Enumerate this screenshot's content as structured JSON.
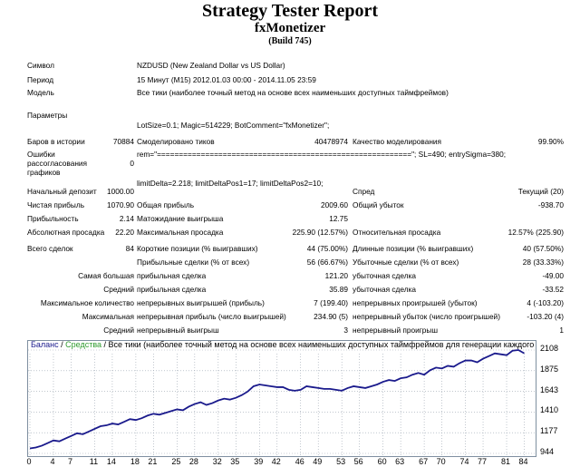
{
  "report": {
    "title": "Strategy Tester Report",
    "expert": "fxMonetizer",
    "build": "(Build 745)"
  },
  "info": {
    "symbol_label": "Символ",
    "symbol_value": "NZDUSD (New Zealand Dollar vs US Dollar)",
    "period_label": "Период",
    "period_value": "15 Минут (M15) 2012.01.03 00:00 - 2014.11.05 23:59",
    "model_label": "Модель",
    "model_value": "Все тики (наиболее точный метод на основе всех наименьших доступных таймфреймов)",
    "params_label": "Параметры",
    "params_lines": [
      "LotSize=0.1; Magic=514229; BotComment=\"fxMonetizer\";",
      "rem=\"==========================================================\"; SL=490; entrySigma=380;",
      "limitDelta=2.218; limitDeltaPos1=17; limitDeltaPos2=10;"
    ],
    "bars_label": "Баров в истории",
    "bars_value": "70884",
    "ticks_label": "Смоделировано тиков",
    "ticks_value": "40478974",
    "quality_label": "Качество моделирования",
    "quality_value": "99.90%",
    "errors_label_1": "Ошибки",
    "errors_label_2": "рассогласования",
    "errors_label_3": "графиков",
    "errors_value": "0"
  },
  "stats": {
    "deposit_label": "Начальный депозит",
    "deposit_value": "1000.00",
    "spread_label": "Спред",
    "spread_value": "Текущий (20)",
    "net_label": "Чистая прибыль",
    "net_value": "1070.90",
    "gross_profit_label": "Общая прибыль",
    "gross_profit_value": "2009.60",
    "gross_loss_label": "Общий убыток",
    "gross_loss_value": "-938.70",
    "pf_label": "Прибыльность",
    "pf_value": "2.14",
    "expected_label": "Матожидание выигрыша",
    "expected_value": "12.75",
    "abs_dd_label": "Абсолютная просадка",
    "abs_dd_value": "22.20",
    "max_dd_label": "Максимальная просадка",
    "max_dd_value": "225.90 (12.57%)",
    "rel_dd_label": "Относительная просадка",
    "rel_dd_value": "12.57% (225.90)",
    "trades_label": "Всего сделок",
    "trades_value": "84",
    "short_label": "Короткие позиции (% выигравших)",
    "short_value": "44 (75.00%)",
    "long_label": "Длинные позиции (% выигравших)",
    "long_value": "40 (57.50%)",
    "profit_trades_label": "Прибыльные сделки (% от всех)",
    "profit_trades_value": "56 (66.67%)",
    "loss_trades_label": "Убыточные сделки (% от всех)",
    "loss_trades_value": "28 (33.33%)",
    "largest_label": "Самая большая",
    "largest_profit_label": "прибыльная сделка",
    "largest_profit_value": "121.20",
    "largest_loss_label": "убыточная сделка",
    "largest_loss_value": "-49.00",
    "average_label": "Средний",
    "average_profit_label": "прибыльная сделка",
    "average_profit_value": "35.89",
    "average_loss_label": "убыточная сделка",
    "average_loss_value": "-33.52",
    "max_count_label": "Максимальное количество",
    "max_cons_wins_label": "непрерывных выигрышей (прибыль)",
    "max_cons_wins_value": "7 (199.40)",
    "max_cons_losses_label": "непрерывных проигрышей (убыток)",
    "max_cons_losses_value": "4 (-103.20)",
    "maximal_label": "Максимальная",
    "max_cons_profit_label": "непрерывная прибыль (число выигрышей)",
    "max_cons_profit_value": "234.90 (5)",
    "max_cons_loss_label": "непрерывный убыток (число проигрышей)",
    "max_cons_loss_value": "-103.20 (4)",
    "avg_cons_label": "Средний",
    "avg_cons_wins_label": "непрерывный выигрыш",
    "avg_cons_wins_value": "3",
    "avg_cons_losses_label": "непрерывный проигрыш",
    "avg_cons_losses_value": "1"
  },
  "chart_legend": {
    "balance": "Баланс",
    "sep1": " / ",
    "equity": "Средства",
    "sep2": " / ",
    "model": "Все тики (наиболее точный метод на основе всех наименьших доступных таймфреймов для генерации каждого"
  },
  "colors": {
    "balance": "#1a1a8c",
    "equity": "#2e9b2e",
    "grid": "#9aa4b0"
  },
  "chart_data": {
    "type": "line",
    "x_ticks": [
      "0",
      "4",
      "7",
      "11",
      "14",
      "18",
      "21",
      "25",
      "28",
      "32",
      "35",
      "39",
      "42",
      "46",
      "49",
      "53",
      "56",
      "60",
      "63",
      "67",
      "70",
      "74",
      "77",
      "81",
      "84"
    ],
    "y_ticks": [
      "2108",
      "1875",
      "1643",
      "1410",
      "1177",
      "944"
    ],
    "ylim": [
      944,
      2108
    ],
    "xlim": [
      0,
      85
    ],
    "series": [
      {
        "type": "balance",
        "x": [
          0,
          1,
          2,
          3,
          4,
          5,
          6,
          7,
          8,
          9,
          10,
          11,
          12,
          13,
          14,
          15,
          16,
          17,
          18,
          19,
          20,
          21,
          22,
          23,
          24,
          25,
          26,
          27,
          28,
          29,
          30,
          31,
          32,
          33,
          34,
          35,
          36,
          37,
          38,
          39,
          40,
          41,
          42,
          43,
          44,
          45,
          46,
          47,
          48,
          49,
          50,
          51,
          52,
          53,
          54,
          55,
          56,
          57,
          58,
          59,
          60,
          61,
          62,
          63,
          64,
          65,
          66,
          67,
          68,
          69,
          70,
          71,
          72,
          73,
          74,
          75,
          76,
          77,
          78,
          79,
          80,
          81,
          82,
          83,
          84
        ],
        "y": [
          1000,
          1010,
          1030,
          1060,
          1090,
          1080,
          1110,
          1140,
          1170,
          1160,
          1190,
          1220,
          1250,
          1260,
          1280,
          1270,
          1300,
          1330,
          1320,
          1340,
          1370,
          1390,
          1380,
          1400,
          1420,
          1440,
          1430,
          1470,
          1500,
          1520,
          1490,
          1510,
          1540,
          1560,
          1550,
          1570,
          1600,
          1640,
          1700,
          1720,
          1710,
          1700,
          1690,
          1690,
          1660,
          1650,
          1660,
          1700,
          1690,
          1680,
          1670,
          1670,
          1660,
          1650,
          1680,
          1700,
          1690,
          1680,
          1700,
          1720,
          1750,
          1770,
          1760,
          1790,
          1800,
          1830,
          1850,
          1830,
          1880,
          1910,
          1900,
          1930,
          1920,
          1960,
          1990,
          1990,
          1970,
          2010,
          2040,
          2070,
          2060,
          2050,
          2100,
          2108,
          2071
        ]
      }
    ]
  }
}
